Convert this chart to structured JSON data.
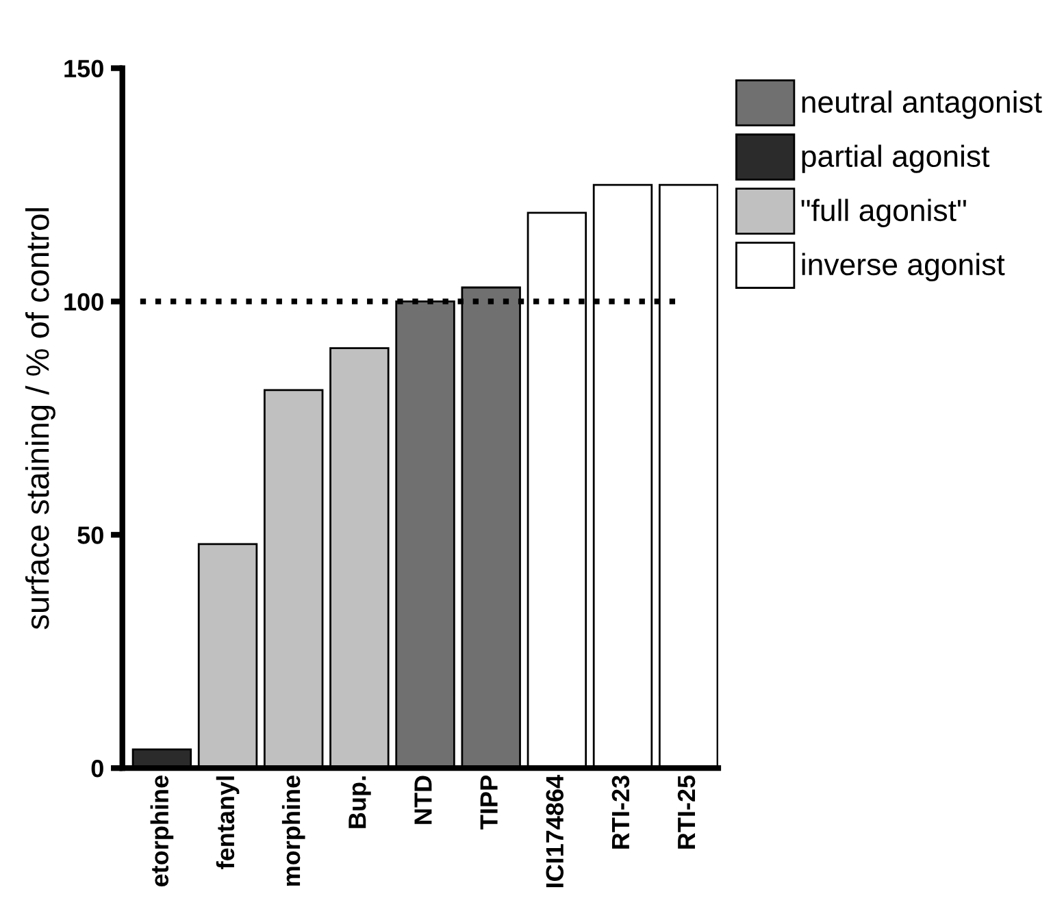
{
  "chart_data": {
    "type": "bar",
    "ylabel": "surface staining / % of control",
    "categories": [
      "etorphine",
      "fentanyl",
      "morphine",
      "Bup.",
      "NTD",
      "TIPP",
      "ICI174864",
      "RTI-23",
      "RTI-25"
    ],
    "series": [
      {
        "name": "neutral antagonist",
        "color": "#707070",
        "values": [
          null,
          null,
          null,
          null,
          100,
          103,
          null,
          null,
          null
        ]
      },
      {
        "name": "partial agonist",
        "color": "#2b2b2b",
        "values": [
          4,
          null,
          null,
          null,
          null,
          null,
          null,
          null,
          null
        ]
      },
      {
        "name": "\"full agonist\"",
        "color": "#c0c0c0",
        "values": [
          null,
          48,
          81,
          90,
          null,
          null,
          null,
          null,
          null
        ]
      },
      {
        "name": "inverse agonist",
        "color": "#ffffff",
        "values": [
          null,
          null,
          null,
          null,
          null,
          null,
          119,
          125,
          125
        ]
      }
    ],
    "ylim": [
      0,
      150
    ],
    "yticks": [
      0,
      50,
      100,
      150
    ],
    "ref_lines": [
      {
        "axis": "y",
        "value": 100,
        "color": "#000000",
        "line_style": "dotted"
      }
    ],
    "legend": "top right",
    "grid": false
  }
}
